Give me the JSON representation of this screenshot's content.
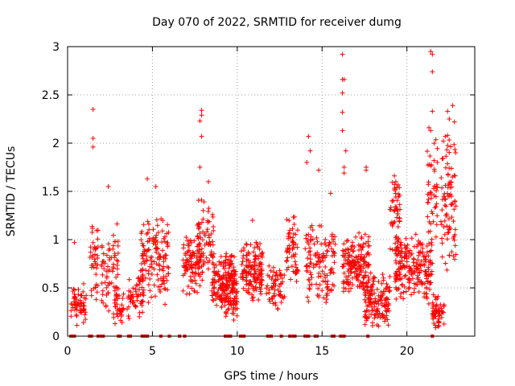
{
  "chart_data": {
    "type": "scatter",
    "title": "Day 070 of 2022, SRMTID for receiver dumg",
    "xlabel": "GPS time / hours",
    "ylabel": "SRMTID / TECUs",
    "xlim": [
      0,
      24
    ],
    "ylim": [
      0,
      3
    ],
    "x_ticks": [
      "0",
      "5",
      "10",
      "15",
      "20"
    ],
    "y_ticks": [
      "0",
      "0.5",
      "1",
      "1.5",
      "2",
      "2.5",
      "3"
    ],
    "grid": true,
    "marker": "+",
    "series": [
      {
        "name": "SRMTID",
        "color": "#ff0000",
        "clusters": [
          {
            "x0": 0.2,
            "x1": 1.1,
            "lo": 0.05,
            "hi": 0.6,
            "n": 60
          },
          {
            "x0": 1.3,
            "x1": 1.8,
            "lo": 0.3,
            "hi": 1.3,
            "n": 40
          },
          {
            "x0": 2.0,
            "x1": 3.0,
            "lo": 0.2,
            "hi": 1.2,
            "n": 70
          },
          {
            "x0": 2.7,
            "x1": 3.3,
            "lo": 0.05,
            "hi": 0.5,
            "n": 35
          },
          {
            "x0": 3.5,
            "x1": 4.5,
            "lo": 0.15,
            "hi": 0.7,
            "n": 55
          },
          {
            "x0": 4.3,
            "x1": 6.0,
            "lo": 0.3,
            "hi": 1.3,
            "n": 140
          },
          {
            "x0": 6.8,
            "x1": 8.0,
            "lo": 0.4,
            "hi": 1.1,
            "n": 110
          },
          {
            "x0": 7.6,
            "x1": 8.6,
            "lo": 0.6,
            "hi": 1.5,
            "n": 60
          },
          {
            "x0": 8.5,
            "x1": 10.0,
            "lo": 0.3,
            "hi": 0.9,
            "n": 150
          },
          {
            "x0": 9.0,
            "x1": 10.0,
            "lo": 0.15,
            "hi": 0.6,
            "n": 80
          },
          {
            "x0": 10.2,
            "x1": 11.5,
            "lo": 0.3,
            "hi": 1.0,
            "n": 140
          },
          {
            "x0": 11.7,
            "x1": 12.8,
            "lo": 0.25,
            "hi": 0.8,
            "n": 60
          },
          {
            "x0": 12.9,
            "x1": 13.6,
            "lo": 0.5,
            "hi": 1.3,
            "n": 55
          },
          {
            "x0": 14.0,
            "x1": 15.8,
            "lo": 0.3,
            "hi": 1.2,
            "n": 130
          },
          {
            "x0": 16.2,
            "x1": 17.8,
            "lo": 0.4,
            "hi": 1.1,
            "n": 170
          },
          {
            "x0": 17.5,
            "x1": 19.0,
            "lo": 0.05,
            "hi": 0.7,
            "n": 140
          },
          {
            "x0": 19.0,
            "x1": 19.6,
            "lo": 0.8,
            "hi": 1.8,
            "n": 55
          },
          {
            "x0": 19.3,
            "x1": 21.5,
            "lo": 0.3,
            "hi": 1.1,
            "n": 220
          },
          {
            "x0": 21.2,
            "x1": 21.8,
            "lo": 0.8,
            "hi": 2.2,
            "n": 45
          },
          {
            "x0": 21.5,
            "x1": 22.2,
            "lo": 0.05,
            "hi": 0.45,
            "n": 60
          },
          {
            "x0": 22.0,
            "x1": 22.9,
            "lo": 0.6,
            "hi": 2.1,
            "n": 90
          }
        ],
        "outliers": [
          [
            0.4,
            0.97
          ],
          [
            1.5,
            2.35
          ],
          [
            1.5,
            2.05
          ],
          [
            1.5,
            1.96
          ],
          [
            2.4,
            1.55
          ],
          [
            4.7,
            1.63
          ],
          [
            5.2,
            1.55
          ],
          [
            7.9,
            2.34
          ],
          [
            7.9,
            2.29
          ],
          [
            7.8,
            2.23
          ],
          [
            7.9,
            2.07
          ],
          [
            7.8,
            1.75
          ],
          [
            8.3,
            1.6
          ],
          [
            10.9,
            1.2
          ],
          [
            14.2,
            2.07
          ],
          [
            14.3,
            1.92
          ],
          [
            14.1,
            1.8
          ],
          [
            14.8,
            1.72
          ],
          [
            15.5,
            1.48
          ],
          [
            16.2,
            2.92
          ],
          [
            16.2,
            2.66
          ],
          [
            16.3,
            2.66
          ],
          [
            16.2,
            2.52
          ],
          [
            16.2,
            2.32
          ],
          [
            16.2,
            2.13
          ],
          [
            16.4,
            1.92
          ],
          [
            16.3,
            1.75
          ],
          [
            16.3,
            1.69
          ],
          [
            17.6,
            1.75
          ],
          [
            17.6,
            1.72
          ],
          [
            21.4,
            2.95
          ],
          [
            21.5,
            2.92
          ],
          [
            21.5,
            2.74
          ],
          [
            21.5,
            2.33
          ],
          [
            21.3,
            2.16
          ],
          [
            21.4,
            2.13
          ],
          [
            21.6,
            1.82
          ],
          [
            22.4,
            2.33
          ],
          [
            22.5,
            2.25
          ],
          [
            22.7,
            2.39
          ],
          [
            22.8,
            2.22
          ],
          [
            22.4,
            2.08
          ]
        ],
        "zero_markers": [
          0.2,
          0.3,
          0.4,
          1.3,
          1.4,
          1.8,
          2.0,
          2.1,
          3.0,
          3.1,
          3.6,
          3.7,
          4.4,
          4.5,
          4.6,
          4.7,
          5.5,
          6.0,
          6.6,
          6.9,
          9.3,
          9.5,
          9.6,
          10.2,
          10.3,
          10.4,
          11.8,
          11.9,
          12.0,
          12.6,
          13.1,
          13.3,
          13.4,
          14.0,
          14.1,
          14.2,
          14.6,
          14.7,
          15.6,
          15.7,
          16.1,
          16.3,
          17.7,
          21.5
        ]
      }
    ]
  }
}
